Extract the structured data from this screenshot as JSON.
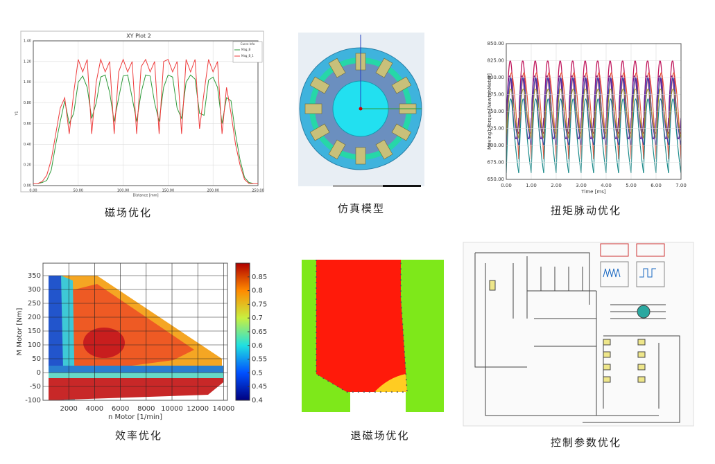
{
  "panels": [
    {
      "caption": "磁场优化",
      "chart": {
        "type": "line",
        "title": "XY Plot 2",
        "x_label": "Distance [mm]",
        "y_label": "Y1",
        "legend_title": "Curve Info",
        "x": [
          0,
          5,
          10,
          15,
          20,
          25,
          30,
          35,
          40,
          45,
          50,
          55,
          60,
          65,
          70,
          75,
          80,
          85,
          90,
          95,
          100,
          105,
          110,
          115,
          120,
          125,
          130,
          135,
          140,
          145,
          150,
          155,
          160,
          165,
          170,
          175,
          180,
          185,
          190,
          195,
          200,
          205,
          210,
          215,
          220,
          225,
          230,
          235,
          240,
          245,
          250
        ],
        "series": [
          {
            "name": "Mag_B",
            "color": "#2e9a3a",
            "values": [
              0.02,
              0.02,
              0.03,
              0.05,
              0.15,
              0.4,
              0.62,
              0.82,
              0.6,
              0.7,
              1.0,
              1.06,
              0.95,
              0.65,
              0.8,
              1.05,
              1.07,
              0.9,
              0.62,
              0.85,
              1.06,
              1.07,
              0.85,
              0.62,
              0.9,
              1.07,
              1.06,
              0.8,
              0.62,
              0.95,
              1.07,
              1.05,
              0.75,
              0.65,
              1.0,
              1.07,
              1.03,
              0.7,
              0.68,
              1.02,
              1.05,
              0.95,
              0.6,
              0.85,
              0.82,
              0.5,
              0.25,
              0.08,
              0.03,
              0.02,
              0.02
            ]
          },
          {
            "name": "Mag_B_1",
            "color": "#ee3b3b",
            "values": [
              0.02,
              0.02,
              0.04,
              0.1,
              0.25,
              0.5,
              0.75,
              0.85,
              0.5,
              0.9,
              1.22,
              1.1,
              1.22,
              0.5,
              1.0,
              1.22,
              1.1,
              1.2,
              0.5,
              1.1,
              1.22,
              1.1,
              1.2,
              0.5,
              1.15,
              1.22,
              1.1,
              1.2,
              0.5,
              1.2,
              1.22,
              1.1,
              1.2,
              0.5,
              1.22,
              1.1,
              1.22,
              0.55,
              0.9,
              1.22,
              1.1,
              1.2,
              0.5,
              0.95,
              0.7,
              0.4,
              0.2,
              0.06,
              0.02,
              0.02,
              0.02
            ]
          }
        ],
        "xlim": [
          0,
          250
        ],
        "ylim": [
          0,
          1.4
        ],
        "xticks": [
          {
            "value": 0,
            "label": "0.00"
          },
          {
            "value": 50,
            "label": "50.00"
          },
          {
            "value": 100,
            "label": "100.00"
          },
          {
            "value": 150,
            "label": "150.00"
          },
          {
            "value": 200,
            "label": "200.00"
          },
          {
            "value": 250,
            "label": "250.00"
          }
        ],
        "yticks": [
          {
            "value": 0,
            "label": "0.00"
          },
          {
            "value": 0.2,
            "label": "0.20"
          },
          {
            "value": 0.4,
            "label": "0.40"
          },
          {
            "value": 0.6,
            "label": "0.60"
          },
          {
            "value": 0.8,
            "label": "0.80"
          },
          {
            "value": 1.0,
            "label": "1.00"
          },
          {
            "value": 1.2,
            "label": "1.20"
          },
          {
            "value": 1.4,
            "label": "1.40"
          }
        ],
        "grid": true
      }
    },
    {
      "caption": "仿真模型"
    },
    {
      "caption": "扭矩脉动优化",
      "chart": {
        "type": "ripple",
        "x_label": "Time [ms]",
        "y_label": "Moving1.Torque [NewtonMeter]",
        "xlim": [
          0,
          7
        ],
        "ylim": [
          650,
          850
        ],
        "xticks": [
          {
            "value": 0,
            "label": "0.00"
          },
          {
            "value": 1,
            "label": "1.00"
          },
          {
            "value": 2,
            "label": "2.00"
          },
          {
            "value": 3,
            "label": "3.00"
          },
          {
            "value": 4,
            "label": "4.00"
          },
          {
            "value": 5,
            "label": "5.00"
          },
          {
            "value": 6,
            "label": "6.00"
          },
          {
            "value": 7,
            "label": "7.00"
          }
        ],
        "yticks": [
          {
            "value": 650,
            "label": "650.00"
          },
          {
            "value": 675,
            "label": "675.00"
          },
          {
            "value": 700,
            "label": "700.00"
          },
          {
            "value": 725,
            "label": "725.00"
          },
          {
            "value": 750,
            "label": "750.00"
          },
          {
            "value": 775,
            "label": "775.00"
          },
          {
            "value": 800,
            "label": "800.00"
          },
          {
            "value": 825,
            "label": "825.00"
          },
          {
            "value": 850,
            "label": "850.00"
          }
        ],
        "grid": true
      }
    },
    {
      "caption": "效率优化",
      "chart": {
        "type": "map",
        "x_label": "n Motor [1/min]",
        "y_label": "M Motor [Nm]",
        "xlim": [
          0,
          14300
        ],
        "ylim": [
          -100,
          395
        ],
        "clim": [
          0.4,
          0.9
        ],
        "xticks": [
          2000,
          4000,
          6000,
          8000,
          10000,
          12000,
          14000
        ],
        "yticks": [
          -100,
          -50,
          0,
          50,
          100,
          150,
          200,
          250,
          300,
          350
        ],
        "cticks": [
          0.4,
          0.45,
          0.5,
          0.55,
          0.6,
          0.65,
          0.7,
          0.75,
          0.8,
          0.85
        ],
        "grid": true
      }
    },
    {
      "caption": "退磁场优化"
    },
    {
      "caption": "控制参数优化"
    }
  ]
}
